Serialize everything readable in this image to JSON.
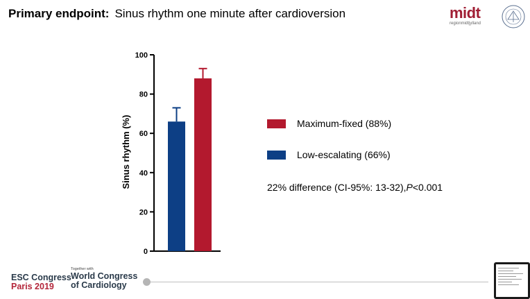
{
  "header": {
    "title_bold": "Primary endpoint:",
    "title_rest": "Sinus rhythm one minute after cardioversion"
  },
  "logos": {
    "midt_word": "midt",
    "midt_sub": "regionmidtjylland"
  },
  "chart_data": {
    "type": "bar",
    "title": "",
    "xlabel": "",
    "ylabel": "Sinus rhythm (%)",
    "ylim": [
      0,
      100
    ],
    "yticks": [
      0,
      20,
      40,
      60,
      80,
      100
    ],
    "categories": [
      "Low-escalating",
      "Maximum-fixed"
    ],
    "values": [
      66,
      88
    ],
    "error_upper": [
      73,
      93
    ],
    "colors": [
      "#0d3f85",
      "#b3192e"
    ],
    "grid": false,
    "legend": [
      {
        "label": "Maximum-fixed (88%)",
        "color": "#b3192e"
      },
      {
        "label": "Low-escalating (66%)",
        "color": "#0d3f85"
      }
    ],
    "legend_position": "right",
    "annotation": {
      "text_before": "22% difference (CI-95%: 13-32),",
      "text_p": "P",
      "text_after": "<0.001"
    }
  },
  "footer": {
    "esc_line1": "ESC Congress",
    "esc_line2": "Paris 2019",
    "together_with": "Together with",
    "wcc_line1": "World Congress",
    "wcc_line2": "of Cardiology"
  },
  "playback": {
    "progress": 0.0
  }
}
